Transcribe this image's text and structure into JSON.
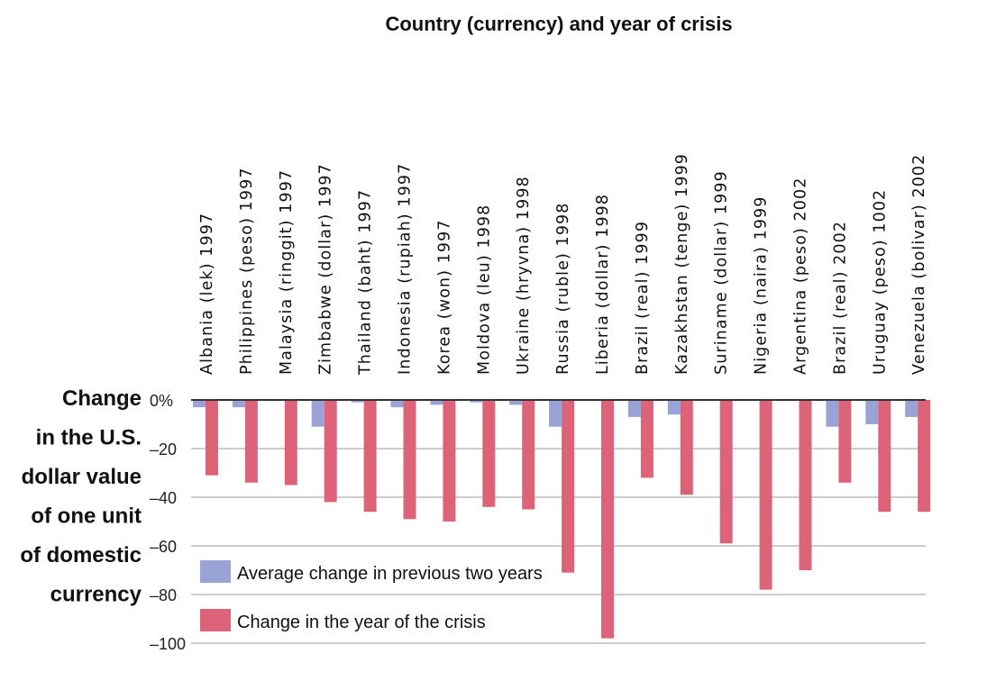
{
  "chart_data": {
    "type": "bar",
    "title": "Country (currency) and year of crisis",
    "ylabel_lines": [
      "Change",
      "in the U.S.",
      "dollar value",
      "of one unit",
      "of domestic",
      "currency"
    ],
    "ylim": [
      -100,
      0
    ],
    "yticks": [
      {
        "value": 0,
        "label": "0%"
      },
      {
        "value": -20,
        "label": "–20"
      },
      {
        "value": -40,
        "label": "–40"
      },
      {
        "value": -60,
        "label": "–60"
      },
      {
        "value": -80,
        "label": "–80"
      },
      {
        "value": -100,
        "label": "–100"
      }
    ],
    "grid": true,
    "legend_position": "bottom-left",
    "categories": [
      "Albania (lek) 1997",
      "Philippines (peso) 1997",
      "Malaysia (ringgit) 1997",
      "Zimbabwe (dollar) 1997",
      "Thailand (baht) 1997",
      "Indonesia (rupiah) 1997",
      "Korea (won) 1997",
      "Moldova (leu) 1998",
      "Ukraine (hryvna) 1998",
      "Russia (ruble) 1998",
      "Liberia (dollar) 1998",
      "Brazil (real) 1999",
      "Kazakhstan (tenge) 1999",
      "Suriname (dollar) 1999",
      "Nigeria (naira) 1999",
      "Argentina (peso) 2002",
      "Brazil (real) 2002",
      "Uruguay (peso) 1002",
      "Venezuela (bolivar) 2002"
    ],
    "series": [
      {
        "name": "Average change in previous two years",
        "color": "#99a3d6",
        "values": [
          -3,
          -3,
          0,
          -11,
          -1,
          -3,
          -2,
          -1,
          -2,
          -11,
          0,
          -7,
          -6,
          0,
          0,
          0,
          -11,
          -10,
          -7
        ]
      },
      {
        "name": "Change in the year of the crisis",
        "color": "#dd6478",
        "values": [
          -31,
          -34,
          -35,
          -42,
          -46,
          -49,
          -50,
          -44,
          -45,
          -71,
          -98,
          -32,
          -39,
          -59,
          -78,
          -70,
          -34,
          -46,
          -46
        ]
      }
    ]
  }
}
